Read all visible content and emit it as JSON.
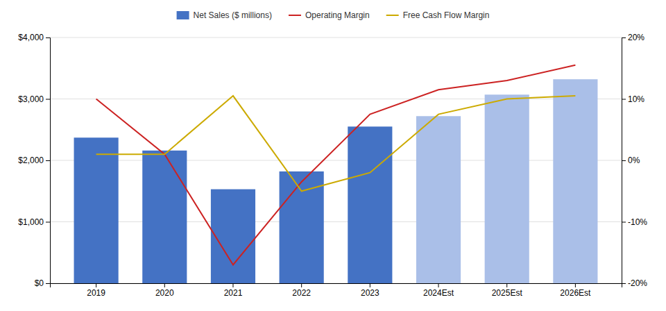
{
  "chart_data": {
    "type": "bar",
    "categories": [
      "2019",
      "2020",
      "2021",
      "2022",
      "2023",
      "2024Est",
      "2025Est",
      "2026Est"
    ],
    "series": [
      {
        "name": "Net Sales ($ millions)",
        "type": "bar",
        "color": "#4472C4",
        "colors": [
          "#4472C4",
          "#4472C4",
          "#4472C4",
          "#4472C4",
          "#4472C4",
          "#AABFE8",
          "#AABFE8",
          "#AABFE8"
        ],
        "values": [
          2370,
          2160,
          1530,
          1820,
          2550,
          2720,
          3070,
          3320
        ]
      },
      {
        "name": "Operating Margin",
        "type": "line",
        "color": "#CC2222",
        "axis": "y2",
        "values": [
          10.0,
          1.0,
          -17.0,
          -3.5,
          7.5,
          11.5,
          13.0,
          15.5
        ]
      },
      {
        "name": "Free Cash Flow Margin",
        "type": "line",
        "color": "#CCAA00",
        "axis": "y2",
        "values": [
          1.0,
          1.0,
          10.5,
          -5.0,
          -2.0,
          7.5,
          10.0,
          10.5
        ]
      }
    ],
    "ylim": [
      0,
      4000
    ],
    "yticks": [
      {
        "value": 0,
        "label": "$0"
      },
      {
        "value": 1000,
        "label": "$1,000"
      },
      {
        "value": 2000,
        "label": "$2,000"
      },
      {
        "value": 3000,
        "label": "$3,000"
      },
      {
        "value": 4000,
        "label": "$4,000"
      }
    ],
    "y2lim": [
      -20,
      20
    ],
    "y2ticks": [
      {
        "value": -20,
        "label": "-20%"
      },
      {
        "value": -10,
        "label": "-10%"
      },
      {
        "value": 0,
        "label": "0%"
      },
      {
        "value": 10,
        "label": "10%"
      },
      {
        "value": 20,
        "label": "20%"
      }
    ],
    "grid": true,
    "legend": "top"
  }
}
